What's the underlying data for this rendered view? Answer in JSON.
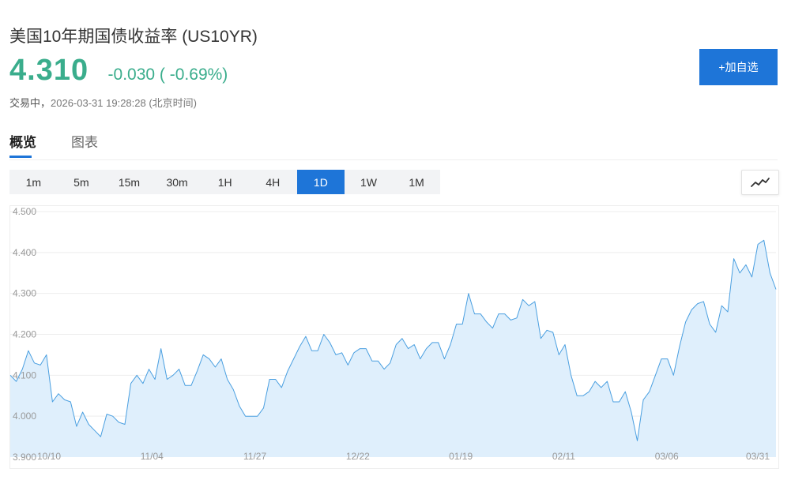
{
  "header": {
    "title": "美国10年期国债收益率 (US10YR)",
    "price": "4.310",
    "change": "-0.030 ( -0.69%)",
    "status_label": "交易中，",
    "timestamp": "2026-03-31 19:28:28 (北京时间)",
    "watch_button": "+加自选"
  },
  "tabs": [
    {
      "label": "概览",
      "active": true
    },
    {
      "label": "图表",
      "active": false
    }
  ],
  "ranges": [
    {
      "label": "1m",
      "active": false
    },
    {
      "label": "5m",
      "active": false
    },
    {
      "label": "15m",
      "active": false
    },
    {
      "label": "30m",
      "active": false
    },
    {
      "label": "1H",
      "active": false
    },
    {
      "label": "4H",
      "active": false
    },
    {
      "label": "1D",
      "active": true
    },
    {
      "label": "1W",
      "active": false
    },
    {
      "label": "1M",
      "active": false
    }
  ],
  "chart_type_icon": "line-chart-icon",
  "colors": {
    "up_down_green": "#3aad8c",
    "accent_blue": "#1e75d8",
    "line": "#4a9fe0",
    "area": "#ddeefc"
  },
  "chart_data": {
    "type": "area",
    "title": "",
    "xlabel": "",
    "ylabel": "",
    "ylim": [
      3.9,
      4.5
    ],
    "yticks": [
      "3.900",
      "4.000",
      "4.100",
      "4.200",
      "4.300",
      "4.400",
      "4.500"
    ],
    "xtick_labels": [
      "10/10",
      "11/04",
      "11/27",
      "12/22",
      "01/19",
      "02/11",
      "03/06",
      "03/31"
    ],
    "grid": true,
    "series": [
      {
        "values": [
          4.1,
          4.085,
          4.115,
          4.16,
          4.13,
          4.125,
          4.15,
          4.035,
          4.055,
          4.04,
          4.035,
          3.975,
          4.01,
          3.98,
          3.965,
          3.95,
          4.005,
          4.0,
          3.985,
          3.98,
          4.08,
          4.1,
          4.08,
          4.115,
          4.09,
          4.165,
          4.09,
          4.1,
          4.115,
          4.075,
          4.075,
          4.11,
          4.15,
          4.14,
          4.12,
          4.14,
          4.09,
          4.065,
          4.025,
          4.0,
          4.0,
          4.0,
          4.02,
          4.09,
          4.09,
          4.07,
          4.11,
          4.14,
          4.17,
          4.195,
          4.16,
          4.16,
          4.2,
          4.18,
          4.15,
          4.155,
          4.125,
          4.155,
          4.165,
          4.165,
          4.135,
          4.135,
          4.115,
          4.13,
          4.175,
          4.19,
          4.165,
          4.175,
          4.14,
          4.165,
          4.18,
          4.18,
          4.14,
          4.175,
          4.225,
          4.225,
          4.3,
          4.25,
          4.25,
          4.23,
          4.215,
          4.25,
          4.25,
          4.235,
          4.24,
          4.285,
          4.27,
          4.28,
          4.19,
          4.21,
          4.205,
          4.15,
          4.175,
          4.1,
          4.05,
          4.05,
          4.06,
          4.085,
          4.07,
          4.085,
          4.035,
          4.035,
          4.06,
          4.01,
          3.94,
          4.04,
          4.06,
          4.1,
          4.14,
          4.14,
          4.1,
          4.17,
          4.23,
          4.26,
          4.275,
          4.28,
          4.225,
          4.205,
          4.27,
          4.255,
          4.385,
          4.35,
          4.37,
          4.34,
          4.42,
          4.43,
          4.35,
          4.31
        ]
      }
    ]
  }
}
